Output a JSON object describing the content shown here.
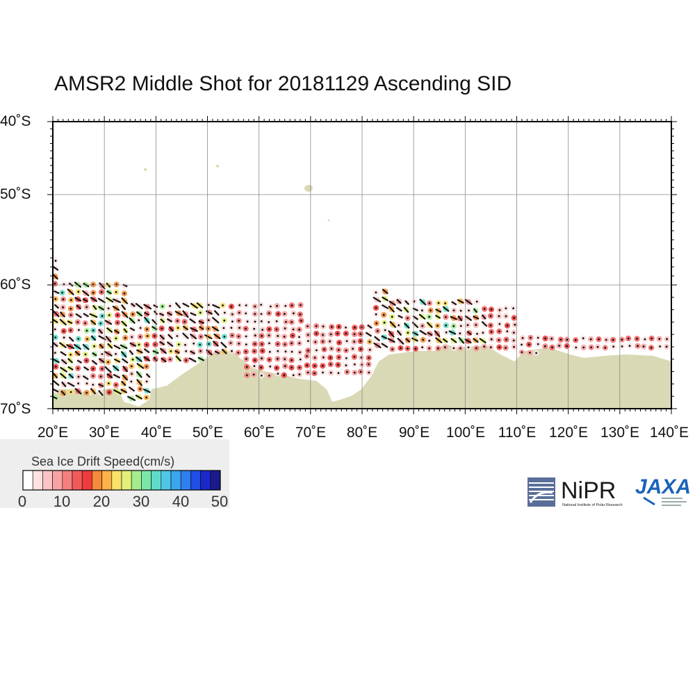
{
  "title": "AMSR2 Middle Shot for 20181129 Ascending SID",
  "map": {
    "lat_labels": [
      "40˚S",
      "50˚S",
      "60˚S",
      "70˚S"
    ],
    "lon_labels": [
      "20˚E",
      "30˚E",
      "40˚E",
      "50˚E",
      "60˚E",
      "70˚E",
      "80˚E",
      "90˚E",
      "100˚E",
      "110˚E",
      "120˚E",
      "130˚E",
      "140˚E"
    ],
    "lon_range": [
      20,
      140
    ],
    "lat_range": [
      -40,
      -70
    ],
    "land_color": "#d9d9b6",
    "grid_color": "#888888"
  },
  "legend": {
    "title": "Sea Ice Drift Speed(cm/s)",
    "ticks": [
      "0",
      "10",
      "20",
      "30",
      "40",
      "50"
    ],
    "colors": [
      "#ffffff",
      "#fde2e2",
      "#fbc4c4",
      "#f8a3a3",
      "#f57f7f",
      "#f25a5a",
      "#ee3b3b",
      "#f7893a",
      "#fbb347",
      "#fbe06a",
      "#e0f07a",
      "#a5ec8e",
      "#7ae7a9",
      "#5fdcc8",
      "#4fc6e6",
      "#3aa6ee",
      "#2f7ff0",
      "#1f4fe6",
      "#1a29c8",
      "#1a1a8c"
    ]
  },
  "logos": {
    "nipr_text": "NiPR",
    "nipr_subtitle": "National Institute of Polar Research",
    "jaxa_text": "JAXA"
  }
}
